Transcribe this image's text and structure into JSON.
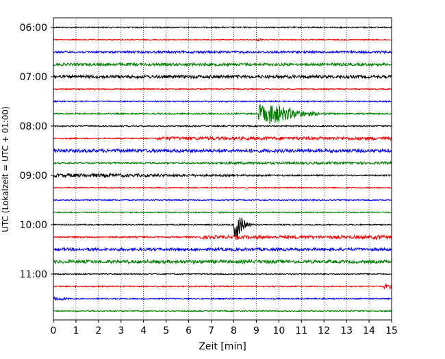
{
  "chart_data": {
    "type": "line",
    "title": "",
    "xlabel": "Zeit  [min]",
    "ylabel": "UTC (Lokalzeit = UTC + 01:00)",
    "xlim": [
      0,
      15
    ],
    "x_ticks": [
      "0",
      "1",
      "2",
      "3",
      "4",
      "5",
      "6",
      "7",
      "8",
      "9",
      "10",
      "11",
      "12",
      "13",
      "14",
      "15"
    ],
    "y_ticks": [
      "06:00",
      "07:00",
      "08:00",
      "09:00",
      "10:00",
      "11:00"
    ],
    "grid": "vertical dotted",
    "trace_interval_min": 15,
    "start_time": "06:00",
    "series": [
      {
        "start": "06:00",
        "color": "#000000",
        "noise": 0.9,
        "events": []
      },
      {
        "start": "06:15",
        "color": "#ff0000",
        "noise": 0.8,
        "events": [
          {
            "t": 9.05,
            "dur": 0.15,
            "amp": 2.0,
            "decay": 0.1
          }
        ]
      },
      {
        "start": "06:30",
        "color": "#0000ff",
        "noise": 1.3,
        "events": [
          {
            "t": 3.2,
            "dur": 11.8,
            "amp": 1.6,
            "decay": 40
          }
        ]
      },
      {
        "start": "06:45",
        "color": "#008000",
        "noise": 1.6,
        "events": [
          {
            "t": 0.0,
            "dur": 15.0,
            "amp": 2.0,
            "decay": 60
          }
        ]
      },
      {
        "start": "07:00",
        "color": "#000000",
        "noise": 1.4,
        "events": [
          {
            "t": 0.0,
            "dur": 10.6,
            "amp": 2.2,
            "decay": 40
          },
          {
            "t": 8.3,
            "dur": 2.3,
            "amp": 1.5,
            "decay": 10
          }
        ]
      },
      {
        "start": "07:15",
        "color": "#ff0000",
        "noise": 0.9,
        "events": []
      },
      {
        "start": "07:30",
        "color": "#0000ff",
        "noise": 0.9,
        "events": []
      },
      {
        "start": "07:45",
        "color": "#008000",
        "noise": 1.0,
        "events": [
          {
            "t": 9.1,
            "dur": 0.25,
            "amp": 13.0,
            "decay": 0.8
          },
          {
            "t": 9.6,
            "dur": 0.2,
            "amp": 16.0,
            "decay": 1.0
          },
          {
            "t": 10.5,
            "dur": 0.3,
            "amp": 4.0,
            "decay": 0.8
          }
        ]
      },
      {
        "start": "08:00",
        "color": "#000000",
        "noise": 0.9,
        "events": []
      },
      {
        "start": "08:15",
        "color": "#ff0000",
        "noise": 0.9,
        "events": [
          {
            "t": 4.6,
            "dur": 10.4,
            "amp": 2.4,
            "decay": 60
          }
        ]
      },
      {
        "start": "08:30",
        "color": "#0000ff",
        "noise": 1.8,
        "events": [
          {
            "t": 0.0,
            "dur": 10.7,
            "amp": 2.4,
            "decay": 50
          },
          {
            "t": 9.4,
            "dur": 1.3,
            "amp": 1.6,
            "decay": 5
          }
        ]
      },
      {
        "start": "08:45",
        "color": "#008000",
        "noise": 1.1,
        "events": [
          {
            "t": 6.9,
            "dur": 8.1,
            "amp": 1.8,
            "decay": 60
          }
        ]
      },
      {
        "start": "09:00",
        "color": "#000000",
        "noise": 1.0,
        "events": [
          {
            "t": 0.0,
            "dur": 1.8,
            "amp": 2.6,
            "decay": 10
          }
        ]
      },
      {
        "start": "09:15",
        "color": "#ff0000",
        "noise": 0.8,
        "events": []
      },
      {
        "start": "09:30",
        "color": "#0000ff",
        "noise": 0.8,
        "events": []
      },
      {
        "start": "09:45",
        "color": "#008000",
        "noise": 0.8,
        "events": []
      },
      {
        "start": "10:00",
        "color": "#000000",
        "noise": 0.9,
        "events": [
          {
            "t": 8.0,
            "dur": 0.18,
            "amp": 22.0,
            "decay": 0.25
          }
        ]
      },
      {
        "start": "10:15",
        "color": "#ff0000",
        "noise": 1.1,
        "events": [
          {
            "t": 6.5,
            "dur": 8.5,
            "amp": 2.4,
            "decay": 60
          },
          {
            "t": 14.2,
            "dur": 0.2,
            "amp": 3.5,
            "decay": 0.3
          }
        ]
      },
      {
        "start": "10:30",
        "color": "#0000ff",
        "noise": 1.8,
        "events": [
          {
            "t": 0.0,
            "dur": 15.0,
            "amp": 2.0,
            "decay": 60
          }
        ]
      },
      {
        "start": "10:45",
        "color": "#008000",
        "noise": 1.4,
        "events": [
          {
            "t": 0.0,
            "dur": 9.4,
            "amp": 2.4,
            "decay": 60
          }
        ]
      },
      {
        "start": "11:00",
        "color": "#000000",
        "noise": 0.8,
        "events": []
      },
      {
        "start": "11:15",
        "color": "#ff0000",
        "noise": 0.9,
        "events": [
          {
            "t": 14.6,
            "dur": 0.4,
            "amp": 3.0,
            "decay": 0.5
          }
        ]
      },
      {
        "start": "11:30",
        "color": "#0000ff",
        "noise": 0.9,
        "events": [
          {
            "t": 0.0,
            "dur": 0.4,
            "amp": 2.4,
            "decay": 0.4
          }
        ]
      },
      {
        "start": "11:45",
        "color": "#008000",
        "noise": 0.8,
        "events": []
      }
    ]
  }
}
